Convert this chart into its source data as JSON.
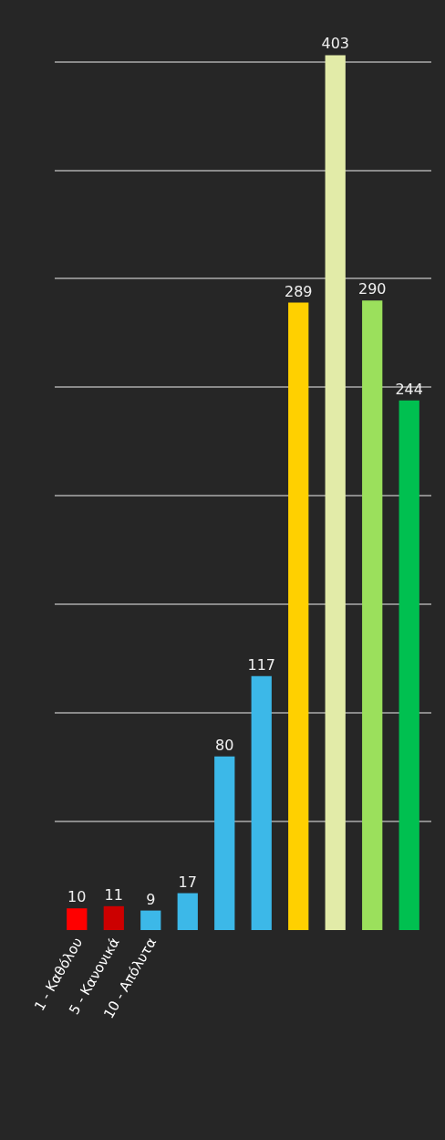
{
  "chart_data": {
    "type": "bar",
    "categories": [
      "1 - Καθόλου",
      "5 - Κανονικά",
      "10 - Απόλυτα",
      null,
      null,
      null,
      null,
      null,
      null,
      null
    ],
    "values": [
      10,
      11,
      9,
      17,
      80,
      117,
      289,
      403,
      290,
      244
    ],
    "colors": [
      "#ff0000",
      "#cc0000",
      "#3cb8e8",
      "#3cb8e8",
      "#3cb8e8",
      "#3cb8e8",
      "#ffd000",
      "#e2eba8",
      "#9be05c",
      "#00c050"
    ],
    "tick_labels": "x",
    "grid": "y",
    "data_labels": true
  }
}
